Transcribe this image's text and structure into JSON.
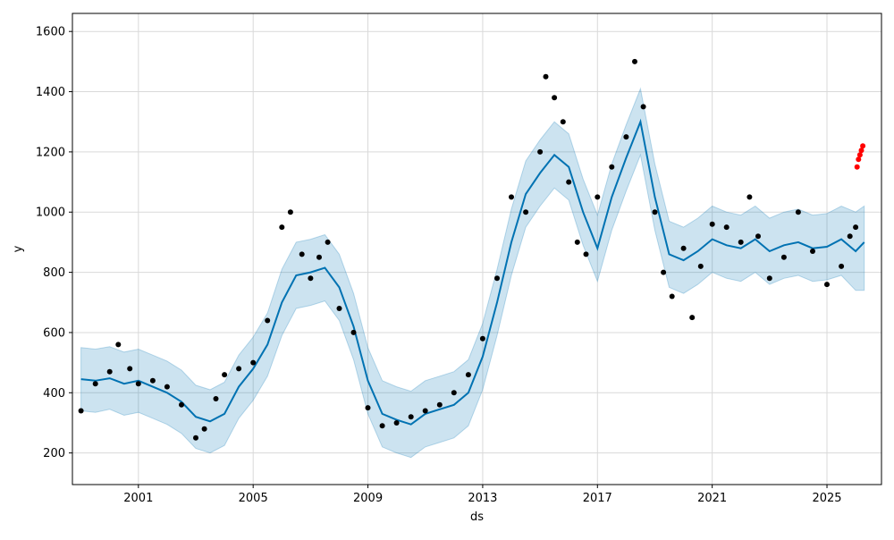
{
  "chart_data": {
    "type": "line",
    "title": "",
    "xlabel": "ds",
    "ylabel": "y",
    "xlim": [
      1998.7,
      2026.9
    ],
    "ylim": [
      95,
      1660
    ],
    "x_ticks": [
      2001,
      2005,
      2009,
      2013,
      2017,
      2021,
      2025
    ],
    "x_tick_labels": [
      "2001",
      "2005",
      "2009",
      "2013",
      "2017",
      "2021",
      "2025"
    ],
    "y_ticks": [
      200,
      400,
      600,
      800,
      1000,
      1200,
      1400,
      1600
    ],
    "y_tick_labels": [
      "200",
      "400",
      "600",
      "800",
      "1000",
      "1200",
      "1400",
      "1600"
    ],
    "grid": true,
    "colors": {
      "observed": "#000000",
      "forecast_line": "#0072b2",
      "uncertainty_band": "#0072b2",
      "anomalies": "#ff0000"
    },
    "series": [
      {
        "kind": "forecast",
        "x": [
          1999.0,
          1999.5,
          2000.0,
          2000.5,
          2001.0,
          2001.5,
          2002.0,
          2002.5,
          2003.0,
          2003.5,
          2004.0,
          2004.5,
          2005.0,
          2005.5,
          2006.0,
          2006.5,
          2007.0,
          2007.5,
          2008.0,
          2008.5,
          2009.0,
          2009.5,
          2010.0,
          2010.5,
          2011.0,
          2011.5,
          2012.0,
          2012.5,
          2013.0,
          2013.5,
          2014.0,
          2014.5,
          2015.0,
          2015.5,
          2016.0,
          2016.5,
          2017.0,
          2017.5,
          2018.0,
          2018.5,
          2019.0,
          2019.5,
          2020.0,
          2020.5,
          2021.0,
          2021.5,
          2022.0,
          2022.5,
          2023.0,
          2023.5,
          2024.0,
          2024.5,
          2025.0,
          2025.5,
          2026.0,
          2026.3
        ],
        "yhat": [
          445,
          440,
          448,
          430,
          440,
          420,
          400,
          370,
          320,
          305,
          330,
          420,
          480,
          560,
          700,
          790,
          800,
          815,
          750,
          620,
          440,
          330,
          310,
          295,
          330,
          345,
          360,
          400,
          520,
          700,
          900,
          1060,
          1130,
          1190,
          1150,
          1000,
          880,
          1050,
          1180,
          1300,
          1050,
          860,
          840,
          870,
          910,
          890,
          880,
          910,
          870,
          890,
          900,
          880,
          885,
          910,
          870,
          900
        ],
        "yhat_lower": [
          340,
          335,
          345,
          325,
          335,
          315,
          295,
          265,
          215,
          200,
          225,
          315,
          375,
          455,
          590,
          680,
          690,
          705,
          640,
          510,
          330,
          220,
          200,
          185,
          220,
          235,
          250,
          290,
          410,
          590,
          790,
          950,
          1020,
          1080,
          1040,
          890,
          770,
          940,
          1070,
          1190,
          940,
          750,
          730,
          760,
          800,
          780,
          770,
          800,
          760,
          780,
          790,
          770,
          775,
          790,
          740,
          740
        ],
        "yhat_upper": [
          550,
          545,
          553,
          535,
          545,
          525,
          505,
          475,
          425,
          410,
          435,
          525,
          585,
          665,
          810,
          900,
          910,
          925,
          860,
          730,
          550,
          440,
          420,
          405,
          440,
          455,
          470,
          510,
          630,
          810,
          1010,
          1170,
          1240,
          1300,
          1260,
          1110,
          990,
          1160,
          1290,
          1410,
          1160,
          970,
          950,
          980,
          1020,
          1000,
          990,
          1020,
          980,
          1000,
          1010,
          990,
          995,
          1020,
          1000,
          1020
        ]
      },
      {
        "kind": "observed",
        "x": [
          1999.0,
          1999.5,
          2000.0,
          2000.3,
          2000.7,
          2001.0,
          2001.5,
          2002.0,
          2002.5,
          2003.0,
          2003.3,
          2003.7,
          2004.0,
          2004.5,
          2005.0,
          2005.5,
          2006.0,
          2006.3,
          2006.7,
          2007.0,
          2007.3,
          2007.6,
          2008.0,
          2008.5,
          2009.0,
          2009.5,
          2010.0,
          2010.5,
          2011.0,
          2011.5,
          2012.0,
          2012.5,
          2013.0,
          2013.5,
          2014.0,
          2014.5,
          2015.0,
          2015.2,
          2015.5,
          2015.8,
          2016.0,
          2016.3,
          2016.6,
          2017.0,
          2017.5,
          2018.0,
          2018.3,
          2018.6,
          2019.0,
          2019.3,
          2019.6,
          2020.0,
          2020.3,
          2020.6,
          2021.0,
          2021.5,
          2022.0,
          2022.3,
          2022.6,
          2023.0,
          2023.5,
          2024.0,
          2024.5,
          2025.0,
          2025.5,
          2025.8,
          2026.0
        ],
        "y": [
          340,
          430,
          470,
          560,
          480,
          430,
          440,
          420,
          360,
          250,
          280,
          380,
          460,
          480,
          500,
          640,
          950,
          1000,
          860,
          780,
          850,
          900,
          680,
          600,
          350,
          290,
          300,
          320,
          340,
          360,
          400,
          460,
          580,
          780,
          1050,
          1000,
          1200,
          1450,
          1380,
          1300,
          1100,
          900,
          860,
          1050,
          1150,
          1250,
          1500,
          1350,
          1000,
          800,
          720,
          880,
          650,
          820,
          960,
          950,
          900,
          1050,
          920,
          780,
          850,
          1000,
          870,
          760,
          820,
          920,
          950
        ]
      },
      {
        "kind": "anomalies",
        "x": [
          2026.05,
          2026.1,
          2026.15,
          2026.2,
          2026.25
        ],
        "y": [
          1150,
          1175,
          1190,
          1205,
          1220
        ]
      }
    ]
  }
}
